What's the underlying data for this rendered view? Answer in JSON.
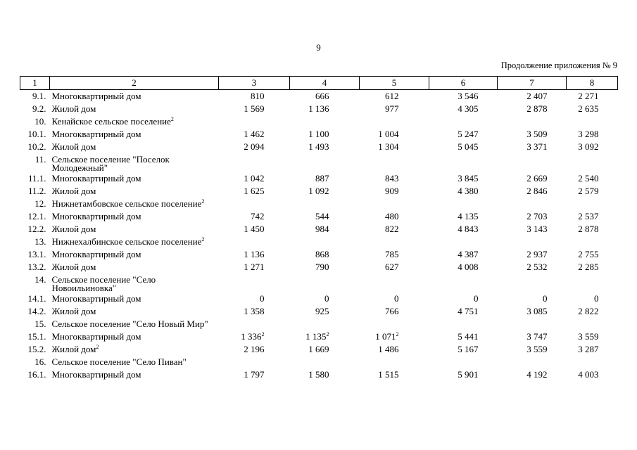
{
  "page_number": "9",
  "continuation": "Продолжение приложения № 9",
  "columns": [
    "1",
    "2",
    "3",
    "4",
    "5",
    "6",
    "7",
    "8"
  ],
  "rows": [
    {
      "idx": "9.1.",
      "name": "Многоквартирный дом",
      "v": [
        {
          "t": "810"
        },
        {
          "t": "666"
        },
        {
          "t": "612"
        },
        {
          "t": "3 546"
        },
        {
          "t": "2 407"
        },
        {
          "t": "2 271"
        }
      ]
    },
    {
      "idx": "9.2.",
      "name": "Жилой дом",
      "v": [
        {
          "t": "1 569"
        },
        {
          "t": "1 136"
        },
        {
          "t": "977"
        },
        {
          "t": "4 305"
        },
        {
          "t": "2 878"
        },
        {
          "t": "2 635"
        }
      ]
    },
    {
      "idx": "10.",
      "name": "Кенайское сельское поселение",
      "name_sup": "2",
      "v": []
    },
    {
      "idx": "10.1.",
      "name": "Многоквартирный дом",
      "v": [
        {
          "t": "1 462"
        },
        {
          "t": "1 100"
        },
        {
          "t": "1 004"
        },
        {
          "t": "5 247"
        },
        {
          "t": "3 509"
        },
        {
          "t": "3 298"
        }
      ]
    },
    {
      "idx": "10.2.",
      "name": "Жилой дом",
      "v": [
        {
          "t": "2 094"
        },
        {
          "t": "1 493"
        },
        {
          "t": "1 304"
        },
        {
          "t": "5 045"
        },
        {
          "t": "3 371"
        },
        {
          "t": "3 092"
        }
      ]
    },
    {
      "idx": "11.",
      "name": "Сельское поселение \"Поселок Молодежный\"",
      "v": []
    },
    {
      "idx": "11.1.",
      "name": "Многоквартирный дом",
      "v": [
        {
          "t": "1 042"
        },
        {
          "t": "887"
        },
        {
          "t": "843"
        },
        {
          "t": "3 845"
        },
        {
          "t": "2 669"
        },
        {
          "t": "2 540"
        }
      ]
    },
    {
      "idx": "11.2.",
      "name": "Жилой дом",
      "v": [
        {
          "t": "1 625"
        },
        {
          "t": "1 092"
        },
        {
          "t": "909"
        },
        {
          "t": "4 380"
        },
        {
          "t": "2 846"
        },
        {
          "t": "2 579"
        }
      ]
    },
    {
      "idx": "12.",
      "name": "Нижнетамбовское сельское поселение",
      "name_sup": "2",
      "v": []
    },
    {
      "idx": "12.1.",
      "name": "Многоквартирный дом",
      "v": [
        {
          "t": "742"
        },
        {
          "t": "544"
        },
        {
          "t": "480"
        },
        {
          "t": "4 135"
        },
        {
          "t": "2 703"
        },
        {
          "t": "2 537"
        }
      ]
    },
    {
      "idx": "12.2.",
      "name": "Жилой дом",
      "v": [
        {
          "t": "1 450"
        },
        {
          "t": "984"
        },
        {
          "t": "822"
        },
        {
          "t": "4 843"
        },
        {
          "t": "3 143"
        },
        {
          "t": "2 878"
        }
      ]
    },
    {
      "idx": "13.",
      "name": "Нижнехалбинское сельское поселение",
      "name_sup": "2",
      "v": []
    },
    {
      "idx": "13.1.",
      "name": "Многоквартирный дом",
      "v": [
        {
          "t": "1 136"
        },
        {
          "t": "868"
        },
        {
          "t": "785"
        },
        {
          "t": "4 387"
        },
        {
          "t": "2 937"
        },
        {
          "t": "2 755"
        }
      ]
    },
    {
      "idx": "13.2.",
      "name": "Жилой дом",
      "v": [
        {
          "t": "1 271"
        },
        {
          "t": "790"
        },
        {
          "t": "627"
        },
        {
          "t": "4 008"
        },
        {
          "t": "2 532"
        },
        {
          "t": "2 285"
        }
      ]
    },
    {
      "idx": "14.",
      "name": "Сельское поселение \"Село Новоильиновка\"",
      "v": []
    },
    {
      "idx": "14.1.",
      "name": "Многоквартирный дом",
      "v": [
        {
          "t": "0"
        },
        {
          "t": "0"
        },
        {
          "t": "0"
        },
        {
          "t": "0"
        },
        {
          "t": "0"
        },
        {
          "t": "0"
        }
      ]
    },
    {
      "idx": "14.2.",
      "name": "Жилой дом",
      "v": [
        {
          "t": "1 358"
        },
        {
          "t": "925"
        },
        {
          "t": "766"
        },
        {
          "t": "4 751"
        },
        {
          "t": "3 085"
        },
        {
          "t": "2 822"
        }
      ]
    },
    {
      "idx": "15.",
      "name": "Сельское поселение \"Село Новый Мир\"",
      "v": []
    },
    {
      "idx": "15.1.",
      "name": "Многоквартирный дом",
      "v": [
        {
          "t": "1 336",
          "sup": "2"
        },
        {
          "t": "1 135",
          "sup": "2"
        },
        {
          "t": "1 071",
          "sup": "2"
        },
        {
          "t": "5 441"
        },
        {
          "t": "3 747"
        },
        {
          "t": "3 559"
        }
      ]
    },
    {
      "idx": "15.2.",
      "name": "Жилой дом",
      "name_sup": "2",
      "v": [
        {
          "t": "2 196"
        },
        {
          "t": "1 669"
        },
        {
          "t": "1 486"
        },
        {
          "t": "5 167"
        },
        {
          "t": "3 559"
        },
        {
          "t": "3 287"
        }
      ]
    },
    {
      "idx": "16.",
      "name": "Сельское поселение \"Село Пиван\"",
      "v": []
    },
    {
      "idx": "16.1.",
      "name": "Многоквартирный дом",
      "v": [
        {
          "t": "1 797"
        },
        {
          "t": "1 580"
        },
        {
          "t": "1 515"
        },
        {
          "t": "5 901"
        },
        {
          "t": "4 192"
        },
        {
          "t": "4 003"
        }
      ]
    }
  ]
}
